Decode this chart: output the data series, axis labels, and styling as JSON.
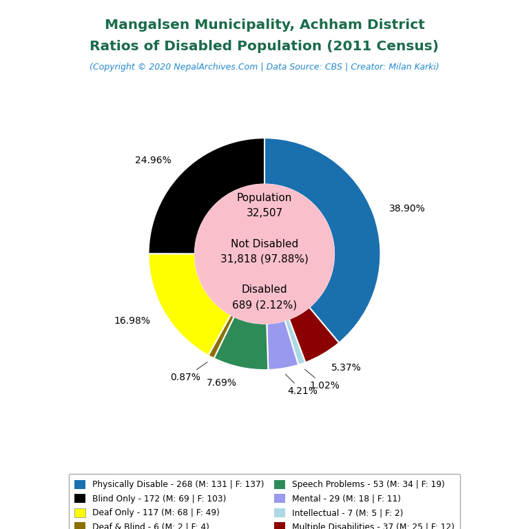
{
  "title_line1": "Mangalsen Municipality, Achham District",
  "title_line2": "Ratios of Disabled Population (2011 Census)",
  "subtitle": "(Copyright © 2020 NepalArchives.Com | Data Source: CBS | Creator: Milan Karki)",
  "title_color": "#1a6b4a",
  "subtitle_color": "#2288cc",
  "population_total": 32507,
  "not_disabled": 31818,
  "not_disabled_pct": 97.88,
  "disabled_total": 689,
  "disabled_pct": 2.12,
  "center_text_color": "#000000",
  "center_bg_color": "#f9c0cc",
  "slices_ordered": [
    {
      "label": "Physically Disable - 268 (M: 131 | F: 137)",
      "value": 268,
      "pct": 38.9,
      "color": "#1a6faf"
    },
    {
      "label": "Multiple Disabilities - 37 (M: 25 | F: 12)",
      "value": 37,
      "pct": 5.37,
      "color": "#8b0000"
    },
    {
      "label": "Intellectual - 7 (M: 5 | F: 2)",
      "value": 7,
      "pct": 1.02,
      "color": "#add8e6"
    },
    {
      "label": "Mental - 29 (M: 18 | F: 11)",
      "value": 29,
      "pct": 4.21,
      "color": "#9999ee"
    },
    {
      "label": "Speech Problems - 53 (M: 34 | F: 19)",
      "value": 53,
      "pct": 7.69,
      "color": "#2e8b57"
    },
    {
      "label": "Deaf & Blind - 6 (M: 2 | F: 4)",
      "value": 6,
      "pct": 0.87,
      "color": "#8b7000"
    },
    {
      "label": "Deaf Only - 117 (M: 68 | F: 49)",
      "value": 117,
      "pct": 16.98,
      "color": "#ffff00"
    },
    {
      "label": "Blind Only - 172 (M: 69 | F: 103)",
      "value": 172,
      "pct": 24.96,
      "color": "#000000"
    }
  ],
  "legend_items": [
    {
      "label": "Physically Disable - 268 (M: 131 | F: 137)",
      "color": "#1a6faf"
    },
    {
      "label": "Blind Only - 172 (M: 69 | F: 103)",
      "color": "#000000"
    },
    {
      "label": "Deaf Only - 117 (M: 68 | F: 49)",
      "color": "#ffff00"
    },
    {
      "label": "Deaf & Blind - 6 (M: 2 | F: 4)",
      "color": "#8b7000"
    },
    {
      "label": "Speech Problems - 53 (M: 34 | F: 19)",
      "color": "#2e8b57"
    },
    {
      "label": "Mental - 29 (M: 18 | F: 11)",
      "color": "#9999ee"
    },
    {
      "label": "Intellectual - 7 (M: 5 | F: 2)",
      "color": "#add8e6"
    },
    {
      "label": "Multiple Disabilities - 37 (M: 25 | F: 12)",
      "color": "#8b0000"
    }
  ]
}
